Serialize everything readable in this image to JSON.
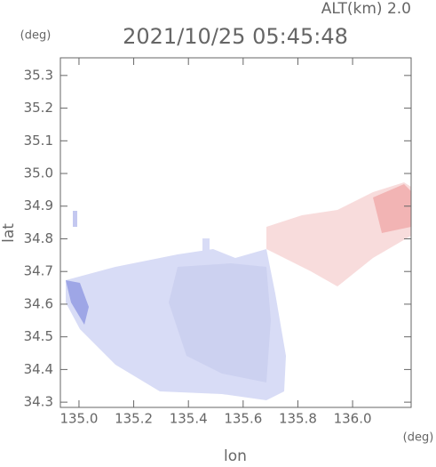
{
  "chart_data": {
    "type": "map",
    "title": "2021/10/25 05:45:48",
    "subtitle": "ALT(km) 2.0",
    "x_label": "lon",
    "y_label": "lat",
    "x_unit": "(deg)",
    "y_unit": "(deg)",
    "xlim": [
      134.932,
      136.214
    ],
    "ylim": [
      34.284,
      35.354
    ],
    "xticks": [
      {
        "value": 135,
        "label": "135.0"
      },
      {
        "value": 135.2,
        "label": "135.2"
      },
      {
        "value": 135.4,
        "label": "135.4"
      },
      {
        "value": 135.6,
        "label": "135.6"
      },
      {
        "value": 135.8,
        "label": "135.8"
      },
      {
        "value": 136,
        "label": "136.0"
      }
    ],
    "yticks": [
      34.3,
      34.4,
      34.5,
      34.6,
      34.7,
      34.8,
      34.9,
      {
        "value": 35,
        "label": "35.0"
      },
      35.1,
      35.2,
      35.3
    ]
  }
}
